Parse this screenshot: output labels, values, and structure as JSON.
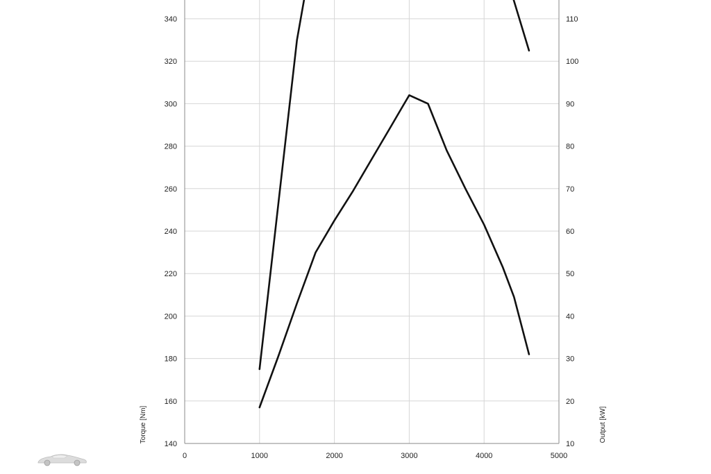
{
  "chart_data": {
    "type": "line",
    "title": "",
    "xlabel": "",
    "ylabel": "Torque [Nm]",
    "y2label": "Output [kW]",
    "xlim": [
      0,
      5000
    ],
    "ylim": [
      140,
      350
    ],
    "y2lim": [
      10,
      115
    ],
    "x_ticks": [
      "0",
      "1000",
      "2000",
      "3000",
      "4000",
      "5000"
    ],
    "y_ticks": [
      "140",
      "160",
      "180",
      "200",
      "220",
      "240",
      "260",
      "280",
      "300",
      "320",
      "340"
    ],
    "y2_ticks": [
      "10",
      "20",
      "30",
      "40",
      "50",
      "60",
      "70",
      "80",
      "90",
      "100",
      "110"
    ],
    "grid": true,
    "series": [
      {
        "axis": "left",
        "x": [
          1000,
          1500,
          1650,
          4300,
          4600
        ],
        "values": [
          175,
          330,
          360,
          360,
          325
        ]
      },
      {
        "axis": "right",
        "x": [
          1000,
          1250,
          1500,
          1750,
          2000,
          2250,
          2500,
          2750,
          2900,
          3000,
          3250,
          3500,
          3750,
          4000,
          4250,
          4400,
          4600
        ],
        "values": [
          18.5,
          30.5,
          43,
          55,
          62.5,
          69.5,
          77,
          84.5,
          89,
          92,
          90,
          79,
          70,
          61.5,
          51.5,
          44.5,
          31
        ]
      }
    ]
  },
  "logo": {
    "icon": "car-silhouette-icon"
  }
}
